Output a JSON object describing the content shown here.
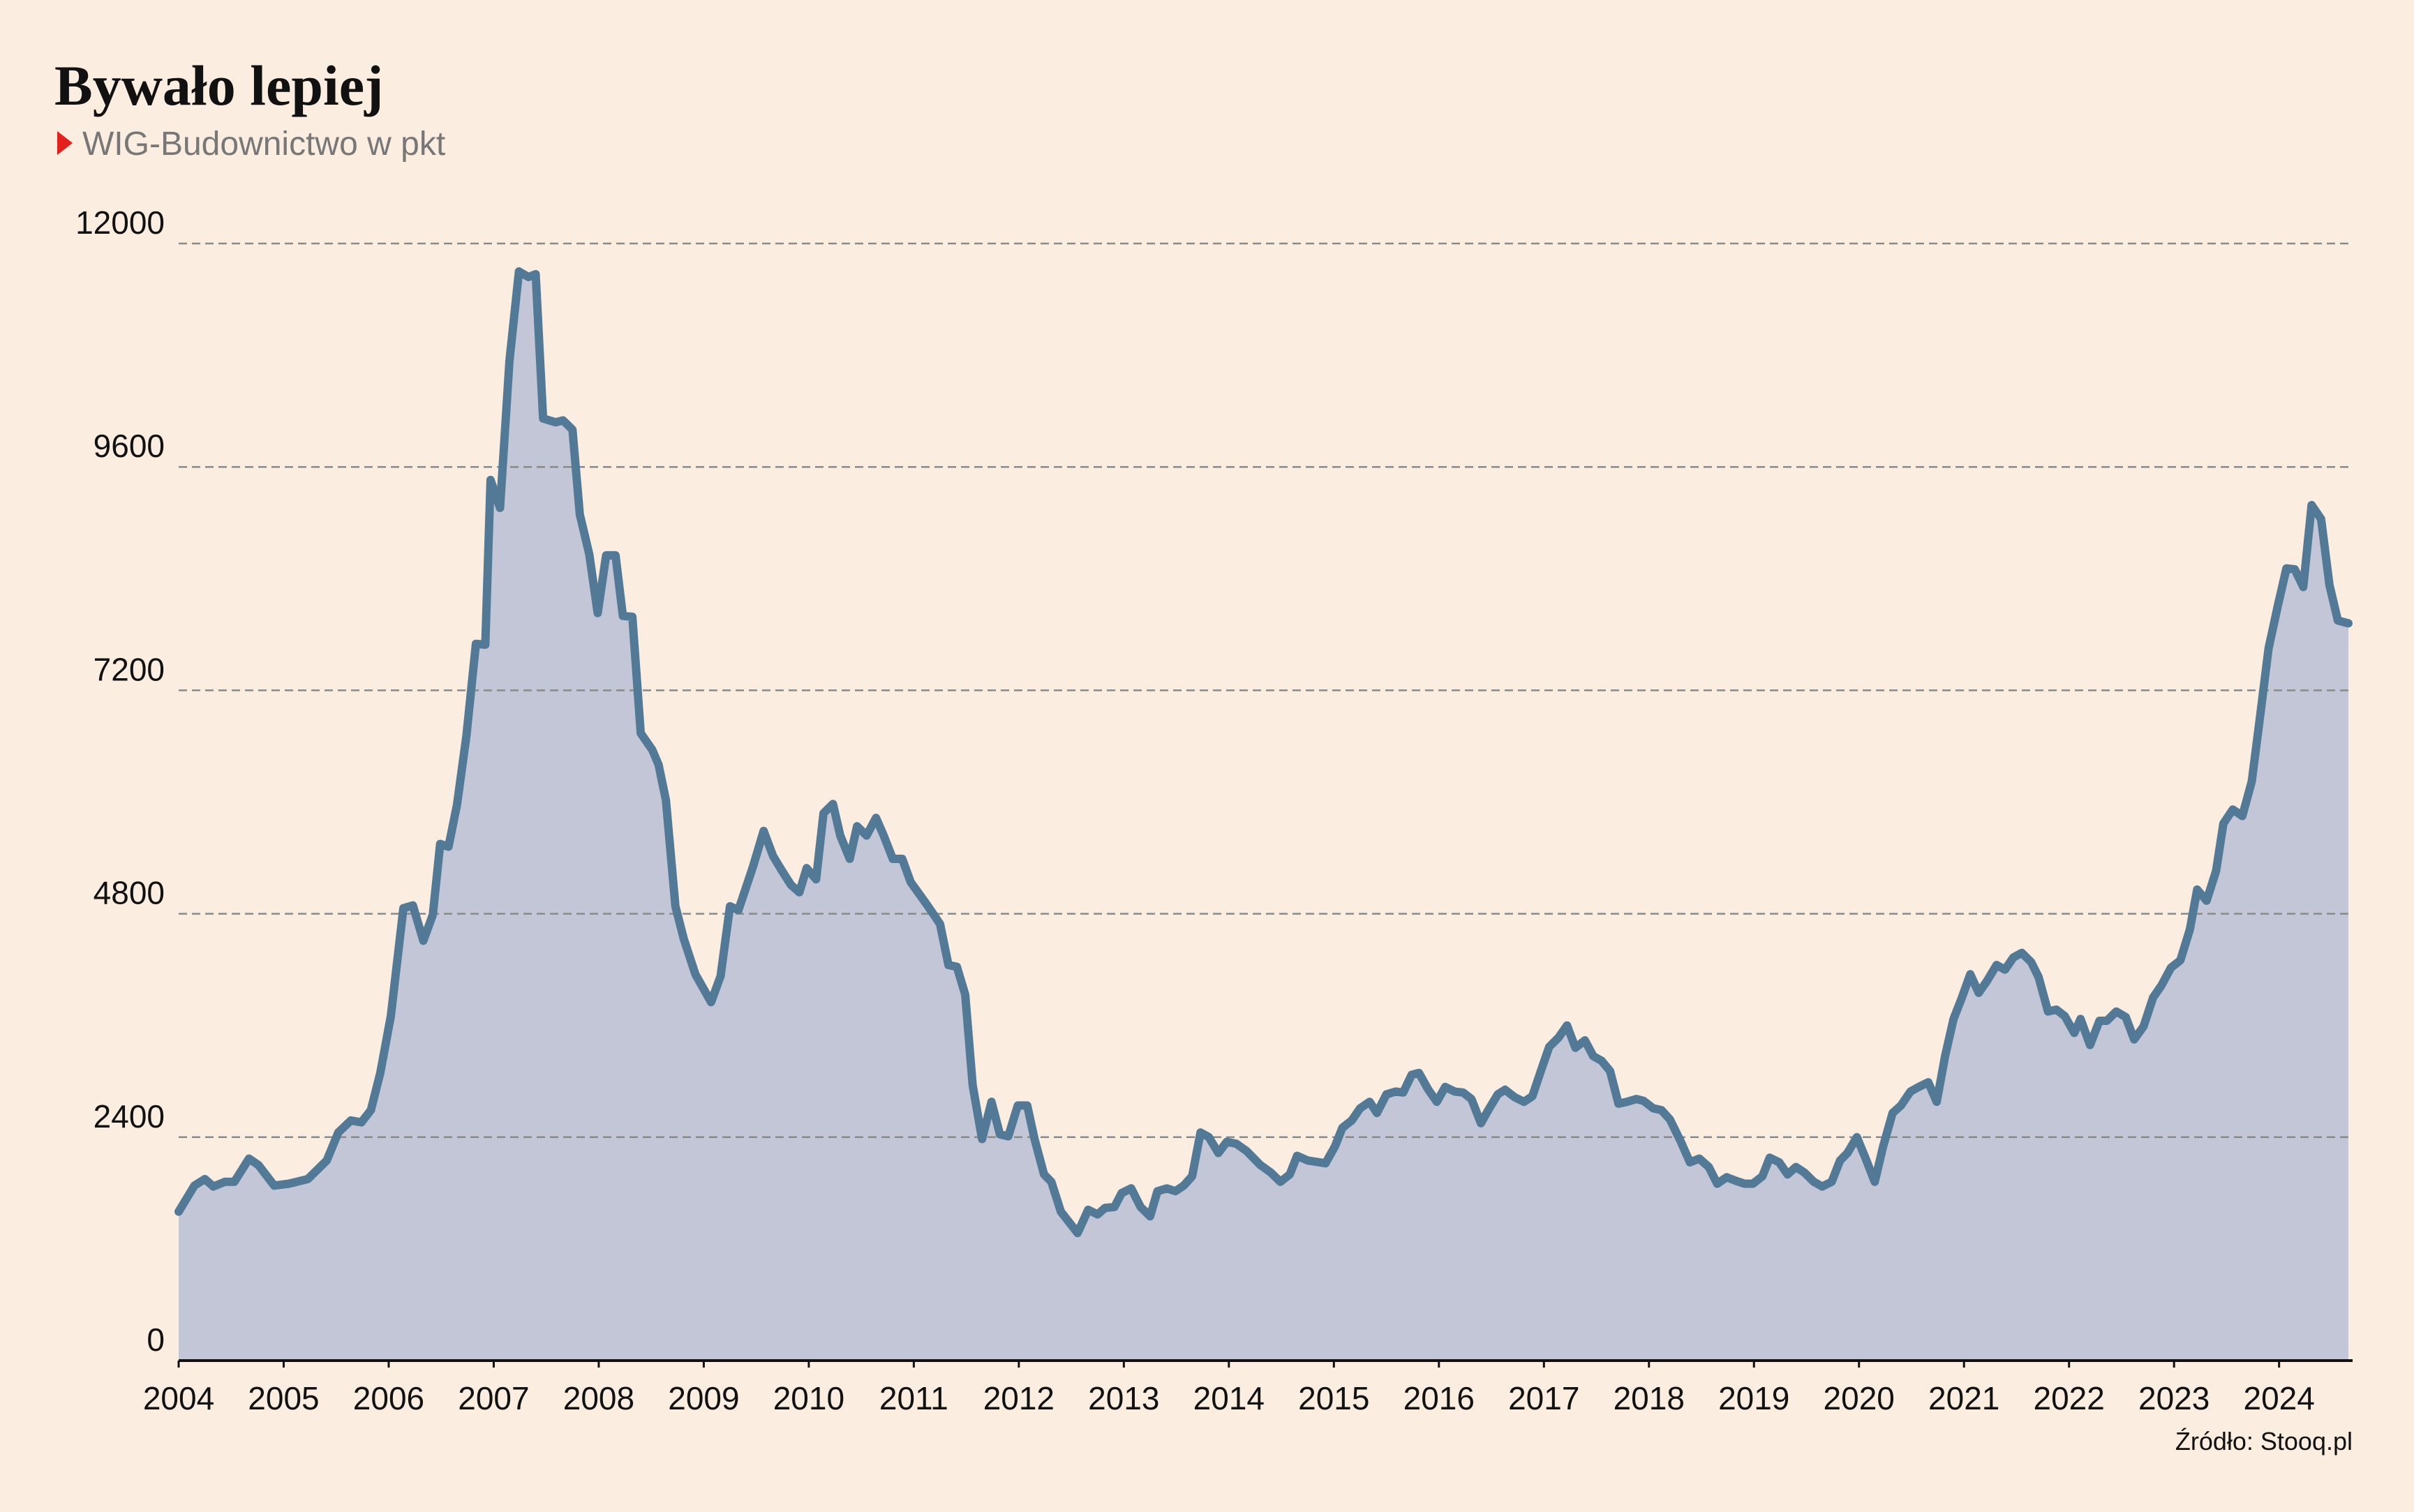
{
  "chart_data": {
    "type": "area",
    "title": "Bywało lepiej",
    "subtitle": "WIG-Budownictwo w pkt",
    "source": "Źródło: Stooq.pl",
    "x": [
      2004.0,
      2004.15,
      2004.25,
      2004.33,
      2004.44,
      2004.53,
      2004.67,
      2004.76,
      2004.91,
      2005.05,
      2005.23,
      2005.41,
      2005.52,
      2005.64,
      2005.74,
      2005.83,
      2005.92,
      2006.02,
      2006.14,
      2006.23,
      2006.33,
      2006.42,
      2006.49,
      2006.57,
      2006.65,
      2006.74,
      2006.83,
      2006.92,
      2006.97,
      2007.06,
      2007.15,
      2007.24,
      2007.33,
      2007.4,
      2007.47,
      2007.59,
      2007.66,
      2007.75,
      2007.82,
      2007.91,
      2007.99,
      2008.07,
      2008.16,
      2008.23,
      2008.32,
      2008.4,
      2008.51,
      2008.57,
      2008.64,
      2008.73,
      2008.81,
      2008.92,
      2009.07,
      2009.16,
      2009.25,
      2009.33,
      2009.47,
      2009.57,
      2009.66,
      2009.74,
      2009.83,
      2009.91,
      2009.98,
      2010.07,
      2010.14,
      2010.23,
      2010.3,
      2010.39,
      2010.46,
      2010.55,
      2010.64,
      2010.71,
      2010.8,
      2010.89,
      2010.97,
      2011.13,
      2011.25,
      2011.33,
      2011.41,
      2011.49,
      2011.56,
      2011.65,
      2011.74,
      2011.82,
      2011.9,
      2011.99,
      2012.08,
      2012.15,
      2012.24,
      2012.31,
      2012.4,
      2012.56,
      2012.66,
      2012.75,
      2012.82,
      2012.91,
      2012.98,
      2013.07,
      2013.16,
      2013.25,
      2013.32,
      2013.41,
      2013.49,
      2013.57,
      2013.65,
      2013.73,
      2013.81,
      2013.9,
      2013.98,
      2014.07,
      2014.17,
      2014.3,
      2014.4,
      2014.49,
      2014.58,
      2014.65,
      2014.75,
      2014.92,
      2015.01,
      2015.08,
      2015.17,
      2015.25,
      2015.34,
      2015.41,
      2015.5,
      2015.59,
      2015.66,
      2015.74,
      2015.81,
      2015.9,
      2015.98,
      2016.06,
      2016.15,
      2016.23,
      2016.31,
      2016.4,
      2016.47,
      2016.56,
      2016.63,
      2016.72,
      2016.81,
      2016.89,
      2016.97,
      2017.05,
      2017.14,
      2017.22,
      2017.3,
      2017.39,
      2017.47,
      2017.55,
      2017.63,
      2017.71,
      2017.79,
      2017.88,
      2017.95,
      2018.04,
      2018.12,
      2018.2,
      2018.3,
      2018.39,
      2018.48,
      2018.57,
      2018.65,
      2018.74,
      2018.83,
      2018.91,
      2018.99,
      2019.08,
      2019.15,
      2019.24,
      2019.32,
      2019.4,
      2019.48,
      2019.57,
      2019.65,
      2019.74,
      2019.82,
      2019.89,
      2019.98,
      2020.06,
      2020.15,
      2020.23,
      2020.32,
      2020.4,
      2020.49,
      2020.57,
      2020.66,
      2020.74,
      2020.82,
      2020.9,
      2020.98,
      2021.06,
      2021.14,
      2021.22,
      2021.31,
      2021.39,
      2021.47,
      2021.55,
      2021.64,
      2021.71,
      2021.8,
      2021.88,
      2021.96,
      2022.05,
      2022.11,
      2022.2,
      2022.29,
      2022.36,
      2022.45,
      2022.54,
      2022.62,
      2022.71,
      2022.8,
      2022.88,
      2022.97,
      2023.06,
      2023.15,
      2023.22,
      2023.31,
      2023.4,
      2023.47,
      2023.56,
      2023.65,
      2023.74,
      2023.81,
      2023.9,
      2023.99,
      2024.07,
      2024.15,
      2024.23,
      2024.31,
      2024.4,
      2024.48,
      2024.56,
      2024.66
    ],
    "values": [
      1600,
      1880,
      1950,
      1870,
      1920,
      1920,
      2170,
      2100,
      1880,
      1900,
      1950,
      2150,
      2450,
      2580,
      2560,
      2690,
      3090,
      3700,
      4860,
      4890,
      4510,
      4790,
      5550,
      5520,
      5970,
      6710,
      7700,
      7690,
      9460,
      9160,
      10740,
      11700,
      11640,
      11670,
      10120,
      10080,
      10100,
      10000,
      9090,
      8660,
      8030,
      8650,
      8650,
      8000,
      7990,
      6740,
      6560,
      6400,
      6020,
      4880,
      4530,
      4150,
      3850,
      4130,
      4880,
      4840,
      5310,
      5690,
      5420,
      5270,
      5110,
      5030,
      5290,
      5170,
      5880,
      5980,
      5640,
      5390,
      5740,
      5640,
      5830,
      5650,
      5390,
      5390,
      5140,
      4890,
      4690,
      4250,
      4230,
      3930,
      2960,
      2380,
      2780,
      2430,
      2410,
      2740,
      2740,
      2380,
      2000,
      1920,
      1600,
      1370,
      1620,
      1570,
      1640,
      1650,
      1800,
      1850,
      1650,
      1550,
      1820,
      1850,
      1820,
      1880,
      1980,
      2450,
      2400,
      2230,
      2350,
      2330,
      2250,
      2100,
      2020,
      1920,
      2000,
      2200,
      2150,
      2120,
      2300,
      2500,
      2580,
      2710,
      2780,
      2660,
      2860,
      2890,
      2880,
      3070,
      3090,
      2910,
      2780,
      2940,
      2890,
      2880,
      2810,
      2550,
      2690,
      2860,
      2910,
      2830,
      2780,
      2840,
      3110,
      3370,
      3470,
      3600,
      3360,
      3440,
      3270,
      3220,
      3110,
      2760,
      2780,
      2810,
      2790,
      2710,
      2690,
      2590,
      2360,
      2130,
      2170,
      2080,
      1900,
      1970,
      1930,
      1900,
      1900,
      1980,
      2180,
      2130,
      2000,
      2080,
      2020,
      1920,
      1870,
      1920,
      2150,
      2230,
      2400,
      2180,
      1920,
      2300,
      2660,
      2740,
      2890,
      2940,
      2990,
      2780,
      3270,
      3670,
      3900,
      4150,
      3950,
      4080,
      4250,
      4200,
      4330,
      4380,
      4280,
      4120,
      3750,
      3770,
      3700,
      3520,
      3670,
      3390,
      3650,
      3650,
      3750,
      3690,
      3450,
      3590,
      3900,
      4030,
      4220,
      4300,
      4630,
      5060,
      4940,
      5260,
      5770,
      5920,
      5850,
      6220,
      6840,
      7650,
      8120,
      8510,
      8500,
      8310,
      9190,
      9040,
      8330,
      7950,
      7920
    ],
    "line_color": "#527a96",
    "fill_color": "#c2c6d6",
    "xlim": [
      2004,
      2024.7
    ],
    "xticks": [
      2004,
      2005,
      2006,
      2007,
      2008,
      2009,
      2010,
      2011,
      2012,
      2013,
      2014,
      2015,
      2016,
      2017,
      2018,
      2019,
      2020,
      2021,
      2022,
      2023,
      2024
    ],
    "ylim": [
      0,
      12000
    ],
    "yticks": [
      0,
      2400,
      4800,
      7200,
      9600,
      12000
    ],
    "grid": true
  }
}
